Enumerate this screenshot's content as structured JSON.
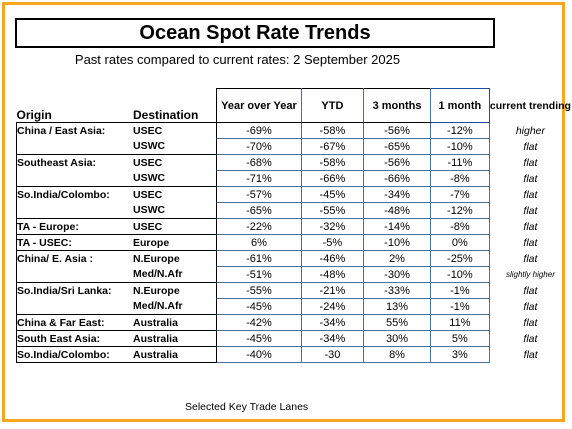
{
  "title": "Ocean Spot Rate Trends",
  "subtitle": "Past rates compared to current rates:  2 September 2025",
  "footer": "Selected Key Trade Lanes",
  "colors": {
    "frame": "#f6a623",
    "header_accent": "#1e4fa3",
    "cell_border": "#4a6fa5"
  },
  "columns": {
    "origin": "Origin",
    "destination": "Destination",
    "yoy": "Year over Year",
    "ytd": "YTD",
    "m3": "3 months",
    "m1": "1 month",
    "trend": "current trending"
  },
  "rows": [
    {
      "origin": "China / East Asia:",
      "dest": "USEC",
      "yoy": "-69%",
      "ytd": "-58%",
      "m3": "-56%",
      "m1": "-12%",
      "trend": "higher"
    },
    {
      "origin": "",
      "dest": "USWC",
      "yoy": "-70%",
      "ytd": "-67%",
      "m3": "-65%",
      "m1": "-10%",
      "trend": "flat"
    },
    {
      "origin": "Southeast Asia:",
      "dest": "USEC",
      "yoy": "-68%",
      "ytd": "-58%",
      "m3": "-56%",
      "m1": "-11%",
      "trend": "flat"
    },
    {
      "origin": "",
      "dest": "USWC",
      "yoy": "-71%",
      "ytd": "-66%",
      "m3": "-66%",
      "m1": "-8%",
      "trend": "flat"
    },
    {
      "origin": "So.India/Colombo:",
      "dest": "USEC",
      "yoy": "-57%",
      "ytd": "-45%",
      "m3": "-34%",
      "m1": "-7%",
      "trend": "flat"
    },
    {
      "origin": "",
      "dest": "USWC",
      "yoy": "-65%",
      "ytd": "-55%",
      "m3": "-48%",
      "m1": "-12%",
      "trend": "flat"
    },
    {
      "origin": "TA - Europe:",
      "dest": "USEC",
      "yoy": "-22%",
      "ytd": "-32%",
      "m3": "-14%",
      "m1": "-8%",
      "trend": "flat"
    },
    {
      "origin": "TA - USEC:",
      "dest": "Europe",
      "yoy": "6%",
      "ytd": "-5%",
      "m3": "-10%",
      "m1": "0%",
      "trend": "flat"
    },
    {
      "origin": "China/ E. Asia :",
      "dest": "N.Europe",
      "yoy": "-61%",
      "ytd": "-46%",
      "m3": "2%",
      "m1": "-25%",
      "trend": "flat"
    },
    {
      "origin": "",
      "dest": "Med/N.Afr",
      "yoy": "-51%",
      "ytd": "-48%",
      "m3": "-30%",
      "m1": "-10%",
      "trend": "slightly higher"
    },
    {
      "origin": "So.India/Sri Lanka:",
      "dest": "N.Europe",
      "yoy": "-55%",
      "ytd": "-21%",
      "m3": "-33%",
      "m1": "-1%",
      "trend": "flat"
    },
    {
      "origin": "",
      "dest": "Med/N.Afr",
      "yoy": "-45%",
      "ytd": "-24%",
      "m3": "13%",
      "m1": "-1%",
      "trend": "flat"
    },
    {
      "origin": "China & Far East:",
      "dest": "Australia",
      "yoy": "-42%",
      "ytd": "-34%",
      "m3": "55%",
      "m1": "11%",
      "trend": "flat"
    },
    {
      "origin": "South East Asia:",
      "dest": "Australia",
      "yoy": "-45%",
      "ytd": "-34%",
      "m3": "30%",
      "m1": "5%",
      "trend": "flat"
    },
    {
      "origin": "So.India/Colombo:",
      "dest": "Australia",
      "yoy": "-40%",
      "ytd": "-30",
      "m3": "8%",
      "m1": "3%",
      "trend": "flat"
    }
  ]
}
